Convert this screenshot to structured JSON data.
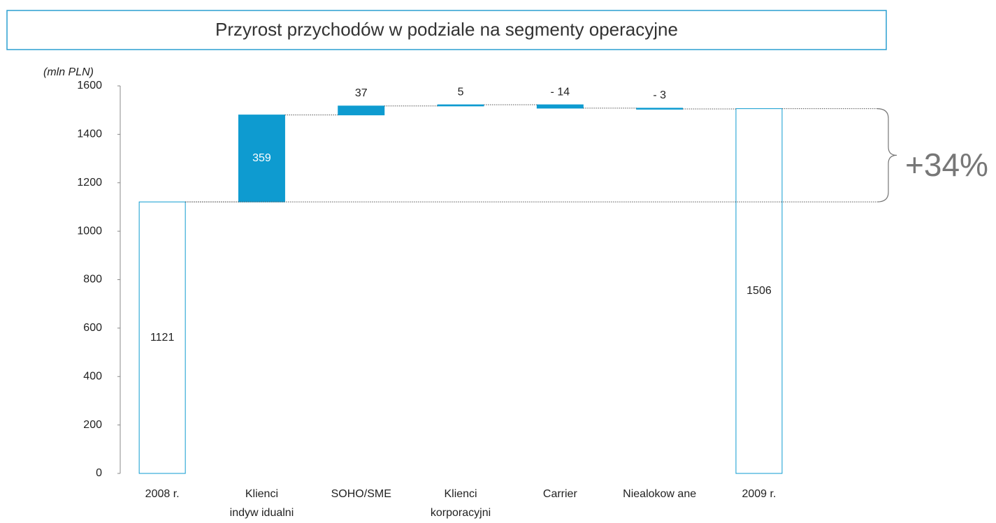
{
  "chart_data": {
    "type": "waterfall",
    "title": "Przyrost przychodów w podziale na segmenty operacyjne",
    "y_label": "(mln PLN)",
    "categories": [
      [
        "2008 r."
      ],
      [
        "Klienci",
        "indyw idualni"
      ],
      [
        "SOHO/SME"
      ],
      [
        "Klienci",
        "korporacyjni"
      ],
      [
        "Carrier"
      ],
      [
        "Niealokow ane"
      ],
      [
        "2009 r."
      ]
    ],
    "values": [
      1121,
      359,
      37,
      5,
      -14,
      -3,
      1506
    ],
    "value_labels": [
      "1121",
      "359",
      "37",
      "5",
      "- 14",
      "- 3",
      "1506"
    ],
    "is_total": [
      true,
      false,
      false,
      false,
      false,
      false,
      true
    ],
    "color": "#0e9bd0",
    "ylim": [
      0,
      1600
    ],
    "yticks": [
      0,
      200,
      400,
      600,
      800,
      1000,
      1200,
      1400,
      1600
    ],
    "annotation": "+34%"
  }
}
